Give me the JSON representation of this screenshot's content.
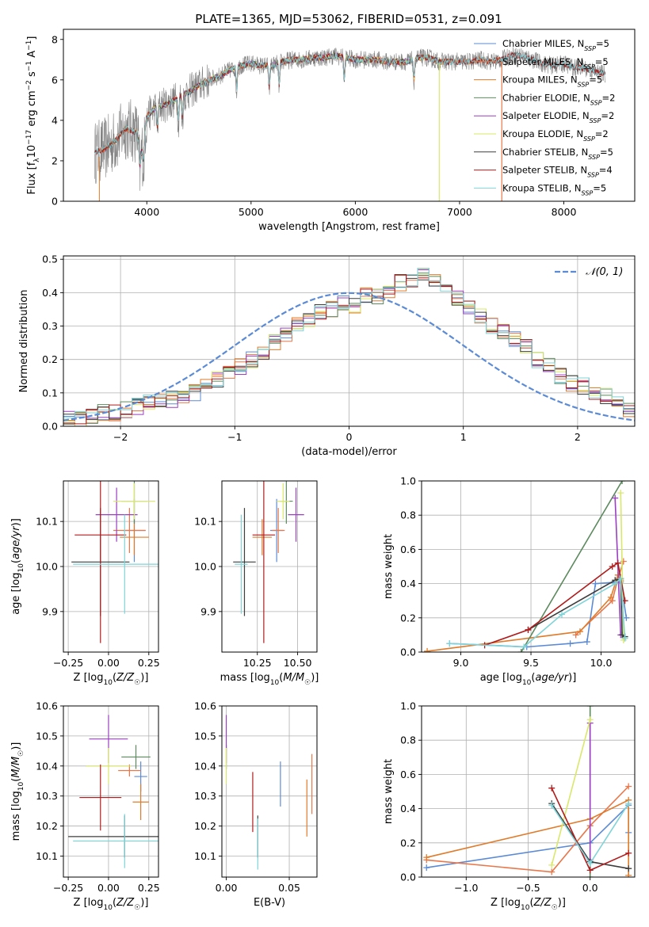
{
  "colors": {
    "chabrier_miles": "#5b8bd6",
    "salpeter_miles": "#e8774a",
    "kroupa_miles": "#e07b2a",
    "chabrier_elodie": "#5c8a5e",
    "salpeter_elodie": "#9a3fc1",
    "kroupa_elodie": "#d9e86a",
    "chabrier_stelib": "#3d3d3d",
    "salpeter_stelib": "#b01c1c",
    "kroupa_stelib": "#7fd4d8",
    "observed": "#808080",
    "gaussian": "#5b8bd6",
    "grid": "#b0b0b0"
  },
  "chart_data": [
    {
      "id": "spectrum",
      "type": "line",
      "title": "PLATE=1365, MJD=53062, FIBERID=0531, z=0.091",
      "xlabel": "wavelength [Angstrom, rest frame]",
      "ylabel": "Flux [f_λ10^-17 erg cm^-2 s^-1 A^-1]",
      "xlim": [
        3200,
        8680
      ],
      "ylim": [
        0,
        8.5
      ],
      "xticks": [
        4000,
        5000,
        6000,
        7000,
        8000
      ],
      "yticks": [
        0,
        2,
        4,
        6,
        8
      ],
      "grid": false,
      "legend_position": "right",
      "legend": [
        {
          "base": "Chabrier MILES, N",
          "sub": "SSP",
          "tail": "=5",
          "color": "chabrier_miles"
        },
        {
          "base": "Salpeter MILES, N",
          "sub": "SSP",
          "tail": "=5",
          "color": "salpeter_miles"
        },
        {
          "base": "Kroupa MILES, N",
          "sub": "SSP",
          "tail": "=5",
          "color": "kroupa_miles"
        },
        {
          "base": "Chabrier ELODIE, N",
          "sub": "SSP",
          "tail": "=2",
          "color": "chabrier_elodie"
        },
        {
          "base": "Salpeter ELODIE, N",
          "sub": "SSP",
          "tail": "=2",
          "color": "salpeter_elodie"
        },
        {
          "base": "Kroupa ELODIE, N",
          "sub": "SSP",
          "tail": "=2",
          "color": "kroupa_elodie"
        },
        {
          "base": "Chabrier STELIB, N",
          "sub": "SSP",
          "tail": "=5",
          "color": "chabrier_stelib"
        },
        {
          "base": "Salpeter STELIB, N",
          "sub": "SSP",
          "tail": "=4",
          "color": "salpeter_stelib"
        },
        {
          "base": "Kroupa STELIB, N",
          "sub": "SSP",
          "tail": "=5",
          "color": "kroupa_stelib"
        }
      ],
      "continuum": [
        [
          3500,
          2.4
        ],
        [
          3600,
          2.6
        ],
        [
          3700,
          3.0
        ],
        [
          3800,
          3.6
        ],
        [
          3900,
          3.4
        ],
        [
          3950,
          2.4
        ],
        [
          4000,
          4.2
        ],
        [
          4100,
          4.7
        ],
        [
          4200,
          4.8
        ],
        [
          4300,
          5.1
        ],
        [
          4400,
          5.4
        ],
        [
          4500,
          5.7
        ],
        [
          4600,
          6.0
        ],
        [
          4700,
          6.2
        ],
        [
          4800,
          6.5
        ],
        [
          4900,
          6.7
        ],
        [
          5000,
          6.8
        ],
        [
          5100,
          6.7
        ],
        [
          5200,
          6.7
        ],
        [
          5300,
          6.9
        ],
        [
          5400,
          7.0
        ],
        [
          5500,
          7.0
        ],
        [
          5600,
          7.1
        ],
        [
          5700,
          7.1
        ],
        [
          5800,
          7.2
        ],
        [
          5900,
          7.1
        ],
        [
          6000,
          7.0
        ],
        [
          6100,
          7.0
        ],
        [
          6200,
          7.0
        ],
        [
          6300,
          6.9
        ],
        [
          6400,
          6.9
        ],
        [
          6500,
          6.9
        ],
        [
          6600,
          7.1
        ],
        [
          6700,
          7.1
        ],
        [
          6800,
          6.9
        ],
        [
          6900,
          6.9
        ],
        [
          7000,
          6.9
        ],
        [
          7100,
          6.9
        ],
        [
          7200,
          7.0
        ],
        [
          7300,
          6.9
        ],
        [
          7400,
          7.0
        ],
        [
          7500,
          7.2
        ],
        [
          7600,
          7.2
        ],
        [
          7700,
          7.0
        ],
        [
          7800,
          6.8
        ],
        [
          7900,
          6.7
        ],
        [
          8000,
          6.8
        ],
        [
          8100,
          6.6
        ],
        [
          8200,
          6.6
        ],
        [
          8300,
          6.4
        ],
        [
          8400,
          6.3
        ]
      ],
      "absorption_lines": [
        3934,
        3969,
        4102,
        4304,
        4341,
        4861,
        5175,
        5270,
        5894,
        6563
      ],
      "spikes": [
        [
          6805,
          0
        ],
        [
          7405,
          0
        ]
      ]
    },
    {
      "id": "residuals",
      "type": "histogram",
      "xlabel": "(data-model)/error",
      "ylabel": "Normed distribution",
      "xlim": [
        -2.5,
        2.5
      ],
      "ylim": [
        0,
        0.51
      ],
      "xticks": [
        -2,
        -1,
        0,
        1,
        2
      ],
      "yticks": [
        0.0,
        0.1,
        0.2,
        0.3,
        0.4,
        0.5
      ],
      "grid": true,
      "legend_position": "top-right",
      "legend": [
        {
          "label": "𝒩(0, 1)",
          "color": "gaussian"
        }
      ],
      "bin_width": 0.1,
      "bin_start": -2.5,
      "reference_counts": [
        0.02,
        0.02,
        0.03,
        0.04,
        0.04,
        0.05,
        0.06,
        0.07,
        0.08,
        0.08,
        0.09,
        0.1,
        0.12,
        0.14,
        0.16,
        0.18,
        0.2,
        0.22,
        0.25,
        0.27,
        0.3,
        0.32,
        0.34,
        0.35,
        0.37,
        0.36,
        0.39,
        0.39,
        0.4,
        0.43,
        0.44,
        0.45,
        0.43,
        0.41,
        0.38,
        0.35,
        0.33,
        0.3,
        0.28,
        0.26,
        0.24,
        0.2,
        0.18,
        0.15,
        0.13,
        0.12,
        0.1,
        0.09,
        0.07,
        0.05
      ]
    },
    {
      "id": "age-vs-z",
      "type": "errorbar",
      "xlabel": "Z [log10(Z/Z☉)]",
      "ylabel": "age [log10(age/yr)]",
      "xlim": [
        -0.28,
        0.31
      ],
      "ylim": [
        9.81,
        10.19
      ],
      "xticks": [
        -0.25,
        0.0,
        0.25
      ],
      "yticks": [
        9.9,
        10.0,
        10.1
      ],
      "grid": true,
      "points": [
        {
          "model": "chabrier_miles",
          "x": 0.16,
          "y": 10.08,
          "xerr": 0.07,
          "yerr": 0.07
        },
        {
          "model": "salpeter_miles",
          "x": 0.13,
          "y": 10.08,
          "xerr": 0.1,
          "yerr": 0.05
        },
        {
          "model": "kroupa_miles",
          "x": 0.16,
          "y": 10.065,
          "xerr": 0.09,
          "yerr": 0.04
        },
        {
          "model": "chabrier_elodie",
          "x": 0.16,
          "y": 10.145,
          "xerr": 0.08,
          "yerr": 0.05
        },
        {
          "model": "salpeter_elodie",
          "x": 0.05,
          "y": 10.115,
          "xerr": 0.13,
          "yerr": 0.06
        },
        {
          "model": "kroupa_elodie",
          "x": 0.16,
          "y": 10.145,
          "xerr": 0.13,
          "yerr": 0.04
        },
        {
          "model": "chabrier_stelib",
          "x": -0.05,
          "y": 10.01,
          "xerr": 0.18,
          "yerr": 0.12
        },
        {
          "model": "salpeter_stelib",
          "x": -0.05,
          "y": 10.07,
          "xerr": 0.16,
          "yerr": 0.24
        },
        {
          "model": "kroupa_stelib",
          "x": 0.1,
          "y": 10.005,
          "xerr": 0.32,
          "yerr": 0.11
        }
      ]
    },
    {
      "id": "age-vs-mass",
      "type": "errorbar",
      "xlabel": "mass [log10(M/M☉)]",
      "ylabel": "",
      "xlim": [
        10.03,
        10.62
      ],
      "ylim": [
        9.81,
        10.19
      ],
      "xticks": [
        10.25,
        10.5
      ],
      "yticks": [
        9.9,
        10.0,
        10.1
      ],
      "grid": true,
      "points": [
        {
          "model": "chabrier_miles",
          "x": 10.37,
          "y": 10.08,
          "xerr": 0.04,
          "yerr": 0.07
        },
        {
          "model": "salpeter_miles",
          "x": 10.38,
          "y": 10.08,
          "xerr": 0.04,
          "yerr": 0.05
        },
        {
          "model": "kroupa_miles",
          "x": 10.28,
          "y": 10.065,
          "xerr": 0.06,
          "yerr": 0.04
        },
        {
          "model": "chabrier_elodie",
          "x": 10.43,
          "y": 10.145,
          "xerr": 0.04,
          "yerr": 0.05
        },
        {
          "model": "salpeter_elodie",
          "x": 10.49,
          "y": 10.115,
          "xerr": 0.05,
          "yerr": 0.06
        },
        {
          "model": "kroupa_elodie",
          "x": 10.41,
          "y": 10.145,
          "xerr": 0.04,
          "yerr": 0.04
        },
        {
          "model": "chabrier_stelib",
          "x": 10.17,
          "y": 10.01,
          "xerr": 0.07,
          "yerr": 0.12
        },
        {
          "model": "salpeter_stelib",
          "x": 10.29,
          "y": 10.07,
          "xerr": 0.07,
          "yerr": 0.24
        },
        {
          "model": "kroupa_stelib",
          "x": 10.15,
          "y": 10.005,
          "xerr": 0.04,
          "yerr": 0.11
        }
      ]
    },
    {
      "id": "massweight-vs-age",
      "type": "line",
      "xlabel": "age [log10(age/yr)]",
      "ylabel": "mass weight",
      "xlim": [
        8.72,
        10.24
      ],
      "ylim": [
        0,
        1.0
      ],
      "xticks": [
        9.0,
        9.5,
        10.0
      ],
      "yticks": [
        0.0,
        0.2,
        0.4,
        0.6,
        0.8,
        1.0
      ],
      "grid": true,
      "series": [
        {
          "model": "chabrier_miles",
          "x": [
            8.92,
            9.47,
            9.78,
            9.9,
            9.96,
            10.14,
            10.18
          ],
          "y": [
            0.05,
            0.03,
            0.05,
            0.06,
            0.4,
            0.41,
            0.2
          ]
        },
        {
          "model": "salpeter_miles",
          "x": [
            9.82,
            10.08,
            10.12,
            10.16
          ],
          "y": [
            0.1,
            0.3,
            0.43,
            0.53
          ]
        },
        {
          "model": "kroupa_miles",
          "x": [
            8.76,
            9.85,
            10.07,
            10.12,
            10.14
          ],
          "y": [
            0.005,
            0.12,
            0.32,
            0.45,
            0.42
          ]
        },
        {
          "model": "chabrier_elodie",
          "x": [
            9.43,
            10.15
          ],
          "y": [
            0.0,
            1.0
          ]
        },
        {
          "model": "salpeter_elodie",
          "x": [
            10.1,
            10.14
          ],
          "y": [
            0.9,
            0.1
          ]
        },
        {
          "model": "kroupa_elodie",
          "x": [
            10.14,
            10.16
          ],
          "y": [
            0.93,
            0.07
          ]
        },
        {
          "model": "chabrier_stelib",
          "x": [
            9.48,
            10.1,
            10.14,
            10.15,
            10.17
          ],
          "y": [
            0.13,
            0.42,
            0.43,
            0.1,
            0.09
          ]
        },
        {
          "model": "salpeter_stelib",
          "x": [
            9.17,
            9.48,
            10.08,
            10.12,
            10.17
          ],
          "y": [
            0.04,
            0.13,
            0.5,
            0.52,
            0.3
          ]
        },
        {
          "model": "kroupa_stelib",
          "x": [
            8.92,
            9.45,
            9.72,
            10.1,
            10.14,
            10.17
          ],
          "y": [
            0.05,
            0.03,
            0.22,
            0.4,
            0.43,
            0.08
          ]
        }
      ]
    },
    {
      "id": "mass-vs-z",
      "type": "errorbar",
      "xlabel": "Z [log10(Z/Z☉)]",
      "ylabel": "mass [log10(M/M☉)]",
      "xlim": [
        -0.28,
        0.31
      ],
      "ylim": [
        10.03,
        10.6
      ],
      "xticks": [
        -0.25,
        0.0,
        0.25
      ],
      "yticks": [
        10.1,
        10.2,
        10.3,
        10.4,
        10.5,
        10.6
      ],
      "grid": true,
      "points": [
        {
          "model": "chabrier_miles",
          "x": 0.2,
          "y": 10.365,
          "xerr": 0.04,
          "yerr": 0.05
        },
        {
          "model": "salpeter_miles",
          "x": 0.13,
          "y": 10.385,
          "xerr": 0.07,
          "yerr": 0.02
        },
        {
          "model": "kroupa_miles",
          "x": 0.2,
          "y": 10.28,
          "xerr": 0.05,
          "yerr": 0.06
        },
        {
          "model": "chabrier_elodie",
          "x": 0.17,
          "y": 10.43,
          "xerr": 0.09,
          "yerr": 0.04
        },
        {
          "model": "salpeter_elodie",
          "x": 0.0,
          "y": 10.49,
          "xerr": 0.12,
          "yerr": 0.08
        },
        {
          "model": "kroupa_elodie",
          "x": 0.0,
          "y": 10.4,
          "xerr": 0.14,
          "yerr": 0.06
        },
        {
          "model": "chabrier_stelib",
          "x": 0.1,
          "y": 10.165,
          "xerr": 0.35,
          "yerr": 0.07
        },
        {
          "model": "salpeter_stelib",
          "x": -0.05,
          "y": 10.295,
          "xerr": 0.13,
          "yerr": 0.11
        },
        {
          "model": "kroupa_stelib",
          "x": 0.1,
          "y": 10.15,
          "xerr": 0.32,
          "yerr": 0.09
        }
      ]
    },
    {
      "id": "mass-vs-ebv",
      "type": "errorbar",
      "xlabel": "E(B-V)",
      "ylabel": "",
      "xlim": [
        -0.0035,
        0.072
      ],
      "ylim": [
        10.03,
        10.6
      ],
      "xticks": [
        0.0,
        0.05
      ],
      "yticks": [
        10.1,
        10.2,
        10.3,
        10.4,
        10.5,
        10.6
      ],
      "grid": true,
      "points": [
        {
          "model": "chabrier_miles",
          "x": 0.043,
          "y": 10.34,
          "xerr": 0,
          "yerr": 0.075
        },
        {
          "model": "salpeter_miles",
          "x": 0.068,
          "y": 10.34,
          "xerr": 0,
          "yerr": 0.1
        },
        {
          "model": "kroupa_miles",
          "x": 0.064,
          "y": 10.26,
          "xerr": 0,
          "yerr": 0.095
        },
        {
          "model": "chabrier_elodie",
          "x": 0.0,
          "y": 10.43,
          "xerr": 0,
          "yerr": 0.04
        },
        {
          "model": "salpeter_elodie",
          "x": 0.0,
          "y": 10.49,
          "xerr": 0,
          "yerr": 0.08
        },
        {
          "model": "kroupa_elodie",
          "x": 0.0,
          "y": 10.4,
          "xerr": 0,
          "yerr": 0.06
        },
        {
          "model": "chabrier_stelib",
          "x": 0.025,
          "y": 10.165,
          "xerr": 0,
          "yerr": 0.07
        },
        {
          "model": "salpeter_stelib",
          "x": 0.021,
          "y": 10.28,
          "xerr": 0,
          "yerr": 0.1
        },
        {
          "model": "kroupa_stelib",
          "x": 0.025,
          "y": 10.14,
          "xerr": 0,
          "yerr": 0.085
        }
      ]
    },
    {
      "id": "massweight-vs-z",
      "type": "line",
      "xlabel": "Z [log10(Z/Z☉)]",
      "ylabel": "mass weight",
      "xlim": [
        -1.36,
        0.36
      ],
      "ylim": [
        0,
        1.0
      ],
      "xticks": [
        -1.0,
        -0.5,
        0.0
      ],
      "yticks": [
        0.0,
        0.2,
        0.4,
        0.6,
        0.8,
        1.0
      ],
      "grid": true,
      "series": [
        {
          "model": "chabrier_miles",
          "x": [
            -1.32,
            0.0,
            0.31,
            0.31
          ],
          "y": [
            0.055,
            0.2,
            0.42,
            0.26
          ]
        },
        {
          "model": "salpeter_miles",
          "x": [
            -1.32,
            -0.31,
            0.0,
            0.31
          ],
          "y": [
            0.1,
            0.03,
            0.3,
            0.53
          ]
        },
        {
          "model": "kroupa_miles",
          "x": [
            -1.32,
            0.0,
            0.31,
            0.31
          ],
          "y": [
            0.115,
            0.34,
            0.45,
            0.01
          ]
        },
        {
          "model": "chabrier_elodie",
          "x": [
            0.0,
            0.0
          ],
          "y": [
            0.0,
            1.0
          ]
        },
        {
          "model": "salpeter_elodie",
          "x": [
            0.0,
            0.0
          ],
          "y": [
            0.1,
            0.9
          ]
        },
        {
          "model": "kroupa_elodie",
          "x": [
            -0.31,
            0.0
          ],
          "y": [
            0.07,
            0.92
          ]
        },
        {
          "model": "chabrier_stelib",
          "x": [
            -0.31,
            0.0,
            0.31
          ],
          "y": [
            0.43,
            0.09,
            0.05
          ]
        },
        {
          "model": "salpeter_stelib",
          "x": [
            -0.31,
            0.0,
            0.31
          ],
          "y": [
            0.52,
            0.04,
            0.14
          ]
        },
        {
          "model": "kroupa_stelib",
          "x": [
            -0.31,
            0.0,
            0.31
          ],
          "y": [
            0.42,
            0.08,
            0.43
          ]
        }
      ]
    }
  ]
}
